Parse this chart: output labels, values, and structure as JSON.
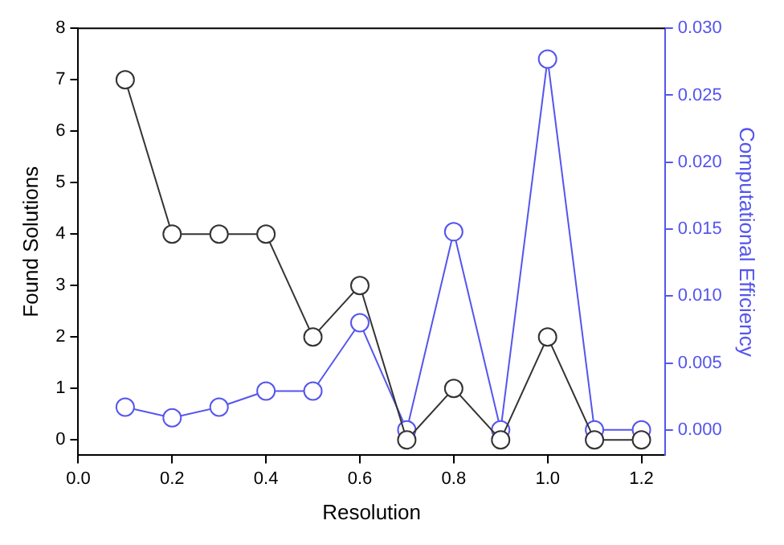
{
  "chart_data": {
    "type": "line",
    "xlabel": "Resolution",
    "ylabel": "Found Solutions",
    "y2label": "Computational Efficiency",
    "x": [
      0.1,
      0.2,
      0.3,
      0.4,
      0.5,
      0.6,
      0.7,
      0.8,
      0.9,
      1.0,
      1.1,
      1.2
    ],
    "series": [
      {
        "color": "#333333",
        "values": [
          7,
          4,
          4,
          4,
          2,
          3,
          0,
          1,
          0,
          2,
          0,
          0
        ]
      },
      {
        "color": "#5555ee",
        "axis": "y2",
        "values": [
          0.0017,
          0.0009,
          0.0017,
          0.0029,
          0.0029,
          0.008,
          0,
          0.0148,
          0,
          0.0277,
          0,
          0
        ]
      }
    ],
    "xlim": [
      0,
      1.25
    ],
    "xticks": [
      {
        "value": 0,
        "label": "0.0"
      },
      0.2,
      0.4,
      0.6,
      0.8,
      {
        "value": 1,
        "label": "1.0"
      },
      1.2
    ],
    "ylim": [
      -0.3,
      8
    ],
    "yticks": [
      0,
      1,
      2,
      3,
      4,
      5,
      6,
      7,
      8
    ],
    "y2lim": [
      -0.0019,
      0.03
    ],
    "y2ticks": [
      {
        "value": 0,
        "label": "0.000"
      },
      {
        "value": 0.005,
        "label": "0.005"
      },
      {
        "value": 0.01,
        "label": "0.010"
      },
      {
        "value": 0.015,
        "label": "0.015"
      },
      {
        "value": 0.02,
        "label": "0.020"
      },
      {
        "value": 0.025,
        "label": "0.025"
      },
      {
        "value": 0.03,
        "label": "0.030"
      }
    ],
    "grid": false,
    "legend": false,
    "marker": "circle",
    "line_style": "solid"
  }
}
